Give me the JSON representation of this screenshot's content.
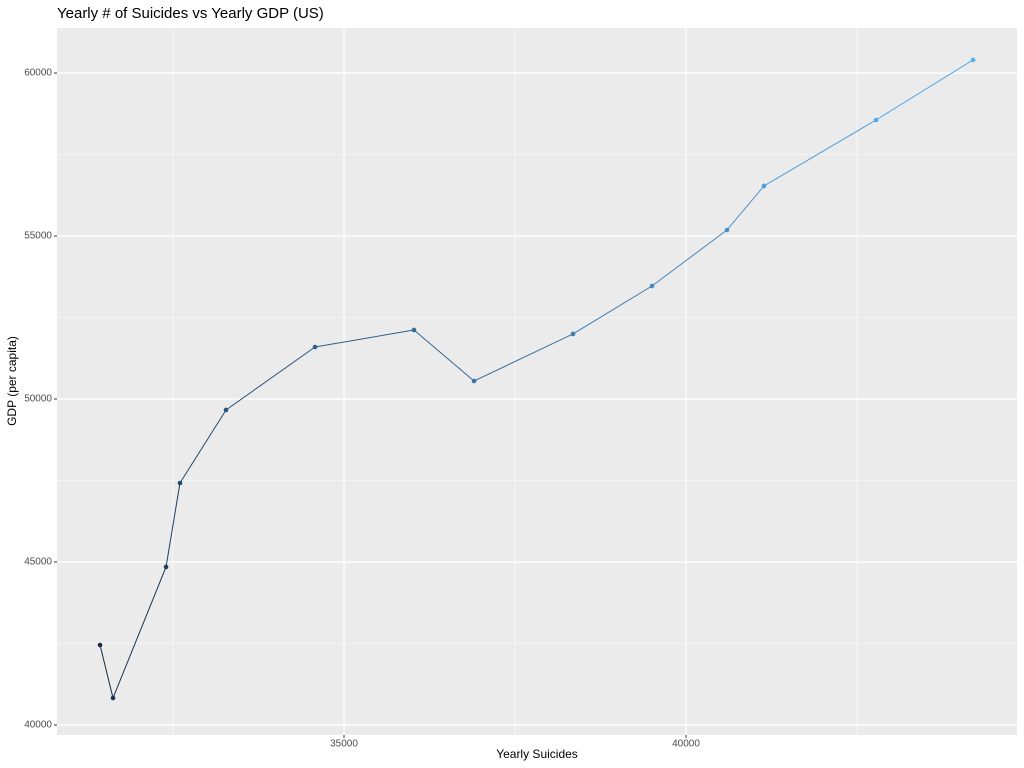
{
  "chart_data": {
    "type": "line",
    "title": "Yearly # of Suicides vs Yearly GDP (US)",
    "x_label": "Yearly Suicides",
    "y_label": "GDP (per capita)",
    "x": [
      31433,
      31623,
      32398,
      32602,
      33275,
      34576,
      36023,
      36901,
      38348,
      39503,
      40599,
      41140,
      42778,
      44196
    ],
    "values": [
      42454,
      40828,
      44847,
      47423,
      49663,
      51595,
      52117,
      50552,
      51994,
      53466,
      55184,
      56534,
      58558,
      60399
    ],
    "colors": [
      "#132b43",
      "#183551",
      "#1d405f",
      "#224a6d",
      "#28547a",
      "#2d5f88",
      "#326996",
      "#3773a4",
      "#3c7db2",
      "#4188c0",
      "#4792cd",
      "#4c9cdb",
      "#51a7e9",
      "#56b1f7"
    ],
    "xlim": [
      30804,
      44839
    ],
    "ylim": [
      39693,
      61380
    ],
    "xticks": [
      35000,
      40000
    ],
    "yticks": [
      40000,
      45000,
      50000,
      55000,
      60000
    ],
    "grid": true,
    "panel_color": "#ebebeb"
  }
}
